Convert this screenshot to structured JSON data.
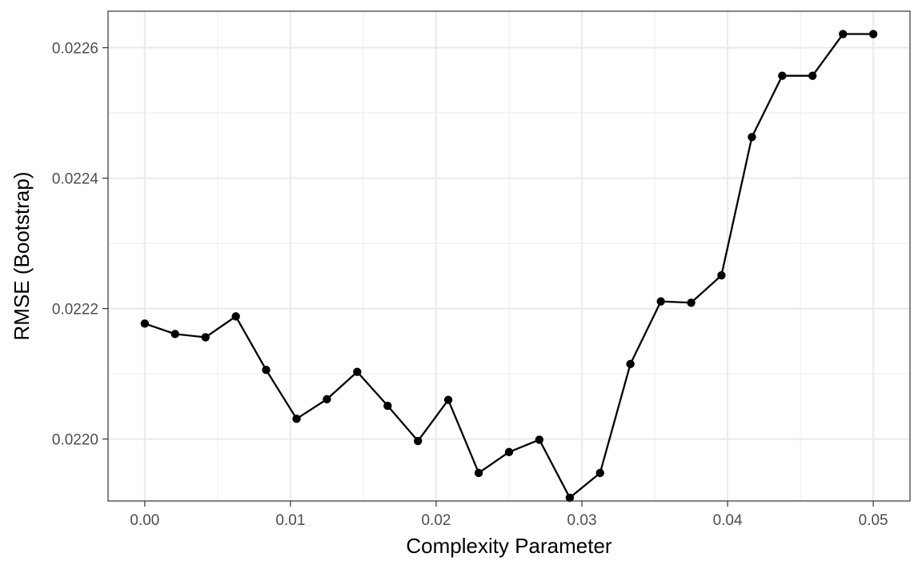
{
  "chart_data": {
    "type": "line",
    "title": "",
    "xlabel": "Complexity Parameter",
    "ylabel": "RMSE (Bootstrap)",
    "xlim": [
      -0.00252,
      0.05252
    ],
    "ylim": [
      0.021905,
      0.022656
    ],
    "x_ticks": [
      0.0,
      0.01,
      0.02,
      0.03,
      0.04,
      0.05
    ],
    "x_tick_labels": [
      "0.00",
      "0.01",
      "0.02",
      "0.03",
      "0.04",
      "0.05"
    ],
    "y_ticks": [
      0.022,
      0.0222,
      0.0224,
      0.0226
    ],
    "y_tick_labels": [
      "0.0220",
      "0.0222",
      "0.0224",
      "0.0226"
    ],
    "grid": true,
    "legend": "none",
    "line_color": "#000000",
    "point_color": "#000000",
    "series": [
      {
        "x": [
          0.0,
          0.00208,
          0.00417,
          0.00625,
          0.00833,
          0.01042,
          0.0125,
          0.01458,
          0.01667,
          0.01875,
          0.02083,
          0.02292,
          0.025,
          0.02708,
          0.02917,
          0.03125,
          0.03333,
          0.03542,
          0.0375,
          0.03958,
          0.04167,
          0.04375,
          0.04583,
          0.04792,
          0.05
        ],
        "y": [
          0.022177,
          0.022161,
          0.022156,
          0.022188,
          0.022106,
          0.022031,
          0.022061,
          0.022103,
          0.022051,
          0.021997,
          0.02206,
          0.021948,
          0.02198,
          0.021999,
          0.02191,
          0.021948,
          0.022115,
          0.022211,
          0.022209,
          0.022251,
          0.022463,
          0.022557,
          0.022557,
          0.022621,
          0.022621
        ]
      }
    ]
  }
}
